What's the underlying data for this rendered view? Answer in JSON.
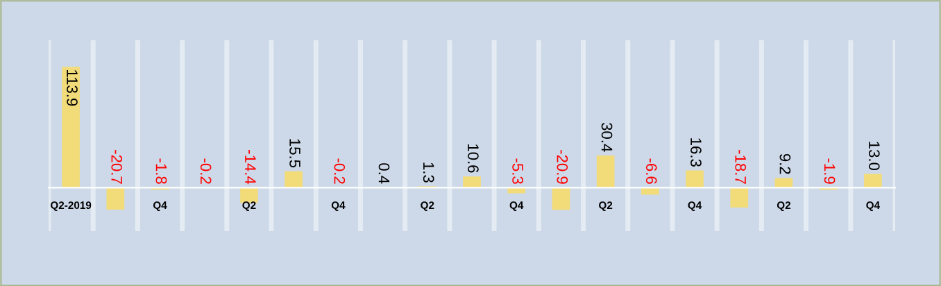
{
  "chart_data": {
    "type": "bar",
    "categories": [
      "Q2-2019",
      null,
      "Q4",
      null,
      "Q2",
      null,
      "Q4",
      null,
      "Q2",
      null,
      "Q4",
      null,
      "Q2",
      null,
      "Q4",
      null,
      "Q2",
      null,
      "Q4"
    ],
    "values": [
      113.9,
      -20.7,
      -1.8,
      -0.2,
      -14.4,
      15.5,
      -0.2,
      0.4,
      1.3,
      10.6,
      -5.3,
      -20.9,
      30.4,
      -6.6,
      16.3,
      -18.7,
      9.2,
      -1.9,
      13.0
    ],
    "value_labels": [
      "113.9",
      "-20.7",
      "-1.8",
      "-0.2",
      "-14.4",
      "15.5",
      "-0.2",
      "0.4",
      "1.3",
      "10.6",
      "-5.3",
      "-20.9",
      "30.4",
      "-6.6",
      "16.3",
      "-18.7",
      "9.2",
      "-1.9",
      "13.0"
    ],
    "color": "#f2dc7a",
    "ylim": [
      -41,
      139
    ],
    "grid": "x",
    "legend": false
  }
}
